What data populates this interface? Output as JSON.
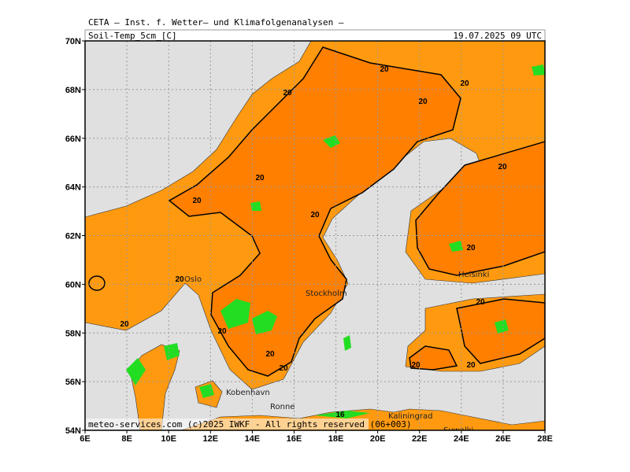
{
  "header": {
    "institute": "CETA – Inst. f. Wetter– und Klimafolgenanalysen –",
    "field": "Soil-Temp_5cm_[C]",
    "valid_time": "19.07.2025 09 UTC"
  },
  "map": {
    "lat_ticks": [
      {
        "value": 54,
        "label": "54N"
      },
      {
        "value": 56,
        "label": "56N"
      },
      {
        "value": 58,
        "label": "58N"
      },
      {
        "value": 60,
        "label": "60N"
      },
      {
        "value": 62,
        "label": "62N"
      },
      {
        "value": 64,
        "label": "64N"
      },
      {
        "value": 66,
        "label": "66N"
      },
      {
        "value": 68,
        "label": "68N"
      },
      {
        "value": 70,
        "label": "70N"
      }
    ],
    "lon_ticks": [
      {
        "value": 6,
        "label": "6E"
      },
      {
        "value": 8,
        "label": "8E"
      },
      {
        "value": 10,
        "label": "10E"
      },
      {
        "value": 12,
        "label": "12E"
      },
      {
        "value": 14,
        "label": "14E"
      },
      {
        "value": 16,
        "label": "16E"
      },
      {
        "value": 18,
        "label": "18E"
      },
      {
        "value": 20,
        "label": "20E"
      },
      {
        "value": 22,
        "label": "22E"
      },
      {
        "value": 24,
        "label": "24E"
      },
      {
        "value": 26,
        "label": "26E"
      },
      {
        "value": 28,
        "label": "28E"
      }
    ],
    "cities": [
      "Oslo",
      "Stockholm",
      "Helsinki",
      "Kobenhavn",
      "Ronne",
      "Kaliningrad",
      "Suwalki"
    ],
    "contour_labels": [
      "20",
      "20",
      "20",
      "20",
      "20",
      "20",
      "20",
      "20",
      "20",
      "20",
      "20",
      "20",
      "20",
      "20",
      "20",
      "20",
      "20",
      "16"
    ],
    "footer": "meteo-services.com (c)2025 IWKF - All rights reserved (06+003)"
  }
}
